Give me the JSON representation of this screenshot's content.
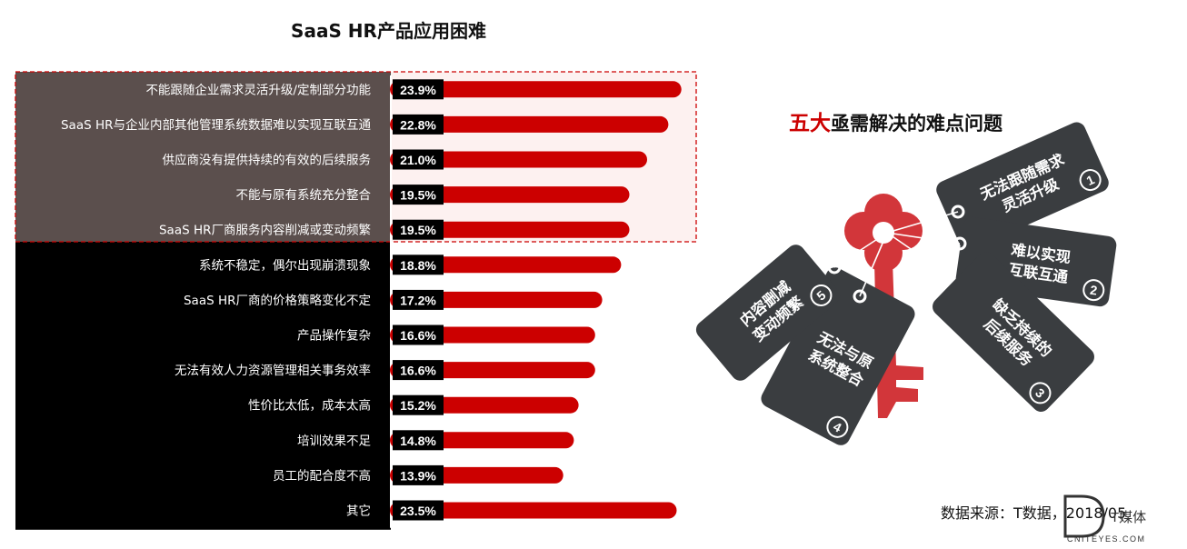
{
  "chart_data": {
    "type": "bar",
    "orientation": "horizontal",
    "title": "SaaS HR产品应用困难",
    "categories": [
      "不能跟随企业需求灵活升级/定制部分功能",
      "SaaS HR与企业内部其他管理系统数据难以实现互联互通",
      "供应商没有提供持续的有效的后续服务",
      "不能与原有系统充分整合",
      "SaaS HR厂商服务内容削减或变动频繁",
      "系统不稳定，偶尔出现崩溃现象",
      "SaaS HR厂商的价格策略变化不定",
      "产品操作复杂",
      "无法有效人力资源管理相关事务效率",
      "性价比太低，成本太高",
      "培训效果不足",
      "员工的配合度不高",
      "其它"
    ],
    "values": [
      23.9,
      22.8,
      21.0,
      19.5,
      19.5,
      18.8,
      17.2,
      16.6,
      16.6,
      15.2,
      14.8,
      13.9,
      23.5
    ],
    "value_labels": [
      "23.9%",
      "22.8%",
      "21.0%",
      "19.5%",
      "19.5%",
      "18.8%",
      "17.2%",
      "16.6%",
      "16.6%",
      "15.2%",
      "14.8%",
      "13.9%",
      "23.5%"
    ],
    "highlighted_count": 5,
    "xlim": [
      0,
      25
    ],
    "grid": false,
    "colors": {
      "bar": "#cc0000",
      "highlight_panel": "#5b4f4d",
      "label_panel": "#000000",
      "highlight_outline": "#cc0000",
      "highlight_fill": "#fdf1f0"
    }
  },
  "right_panel": {
    "title_emphasis": "五大",
    "title_rest": "亟需解决的难点问题",
    "tags": [
      {
        "number": "1",
        "lines": [
          "无法跟随需求",
          "灵活升级"
        ]
      },
      {
        "number": "2",
        "lines": [
          "难以实现",
          "互联互通"
        ]
      },
      {
        "number": "3",
        "lines": [
          "缺乏持续的",
          "后续服务"
        ]
      },
      {
        "number": "4",
        "lines": [
          "无法与原",
          "系统整合"
        ]
      },
      {
        "number": "5",
        "lines": [
          "内容删减",
          "变动频繁"
        ]
      }
    ],
    "colors": {
      "tag": "#3a3d40",
      "tag_text": "#ffffff",
      "key": "#d2363a"
    },
    "icons": [
      "key-icon"
    ]
  },
  "footer": {
    "source": "数据来源：T数据，2018/05",
    "logo_text": "T媒体",
    "logo_sub": "CNITEYES.COM"
  }
}
